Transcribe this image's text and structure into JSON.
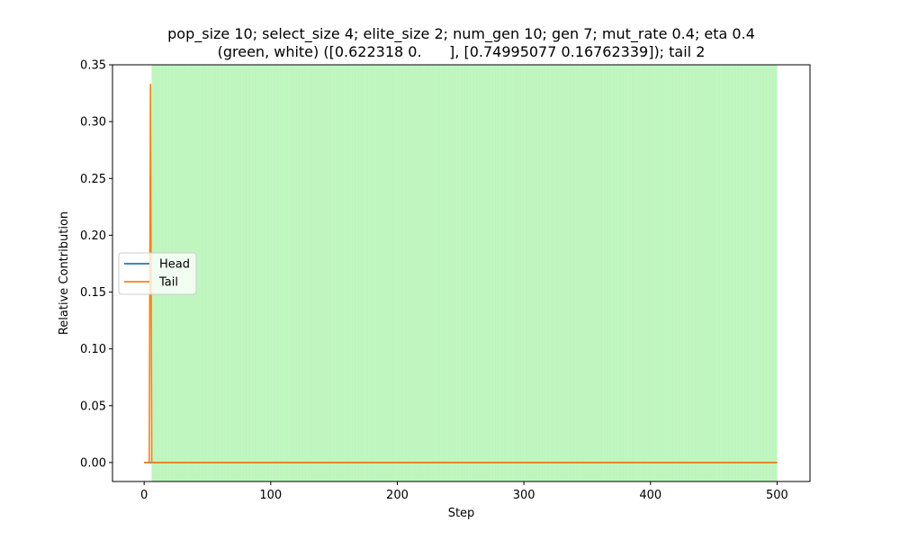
{
  "chart_data": {
    "type": "line",
    "title_lines": [
      "pop_size 10; select_size 4; elite_size 2; num_gen 10; gen 7; mut_rate 0.4; eta 0.4",
      "(green, white) ([0.622318 0.      ], [0.74995077 0.16762339]); tail 2"
    ],
    "xlabel": "Step",
    "ylabel": "Relative Contribution",
    "xlim": [
      -25,
      526
    ],
    "ylim": [
      -0.0167,
      0.35
    ],
    "xticks": [
      0,
      100,
      200,
      300,
      400,
      500
    ],
    "yticks": [
      0.0,
      0.05,
      0.1,
      0.15,
      0.2,
      0.25,
      0.3,
      0.35
    ],
    "ytick_labels": [
      "0.00",
      "0.05",
      "0.10",
      "0.15",
      "0.20",
      "0.25",
      "0.30",
      "0.35"
    ],
    "grid": false,
    "legend_position": "center-left",
    "shaded_region": {
      "x_start": 6,
      "x_end": 500,
      "color": "#90ee90",
      "stripe_color": "#c6f6c6"
    },
    "series": [
      {
        "name": "Head",
        "color": "#1f77b4",
        "x": [
          0,
          500
        ],
        "y": [
          0,
          0
        ]
      },
      {
        "name": "Tail",
        "color": "#ff7f0e",
        "x": [
          0,
          4,
          5,
          6,
          7,
          500
        ],
        "y": [
          0,
          0,
          0.3333,
          0.0,
          0,
          0
        ]
      }
    ]
  }
}
